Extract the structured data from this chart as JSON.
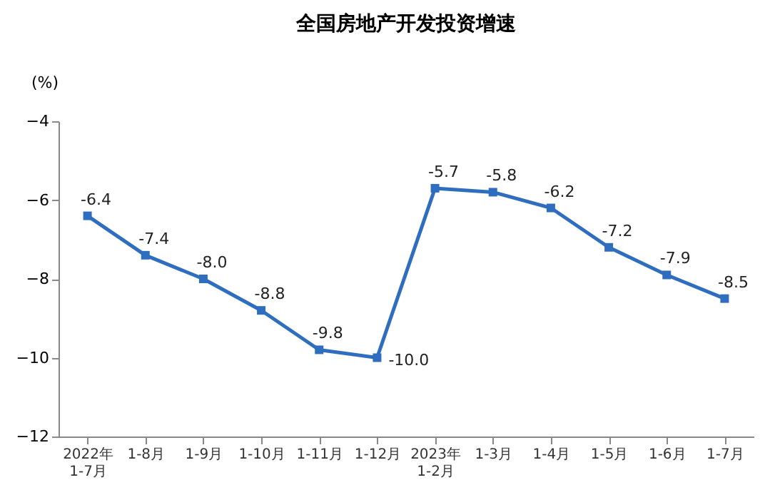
{
  "chart_data": {
    "type": "line",
    "title": "全国房地产开发投资增速",
    "ylabel": "(%)",
    "categories": [
      "2022年\n1-7月",
      "1-8月",
      "1-9月",
      "1-10月",
      "1-11月",
      "1-12月",
      "2023年\n1-2月",
      "1-3月",
      "1-4月",
      "1-5月",
      "1-6月",
      "1-7月"
    ],
    "series": [
      {
        "color": "#2f6ebf",
        "values": [
          -6.4,
          -7.4,
          -8.0,
          -8.8,
          -9.8,
          -10.0,
          -5.7,
          -5.8,
          -6.2,
          -7.2,
          -7.9,
          -8.5
        ]
      }
    ],
    "value_labels": [
      "-6.4",
      "-7.4",
      "-8.0",
      "-8.8",
      "-9.8",
      "-10.0",
      "-5.7",
      "-5.8",
      "-6.2",
      "-7.2",
      "-7.9",
      "-8.5"
    ],
    "ylim": [
      -12,
      -4
    ],
    "yticks": [
      -4,
      -6,
      -8,
      -10,
      -12
    ],
    "grid": false,
    "marker": "square",
    "line_style": "solid"
  }
}
